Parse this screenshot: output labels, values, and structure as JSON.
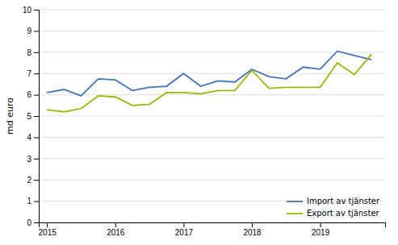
{
  "chart_data": {
    "type": "line",
    "ylabel": "md euro",
    "x": [
      2015.0,
      2015.25,
      2015.5,
      2015.75,
      2016.0,
      2016.25,
      2016.5,
      2016.75,
      2017.0,
      2017.25,
      2017.5,
      2017.75,
      2018.0,
      2018.25,
      2018.5,
      2018.75,
      2019.0,
      2019.25,
      2019.5,
      2019.75
    ],
    "series": [
      {
        "name": "Import av tjänster",
        "color": "#4472C4",
        "values": [
          6.1,
          6.25,
          5.95,
          6.75,
          6.7,
          6.2,
          6.35,
          6.4,
          7.0,
          6.4,
          6.65,
          6.6,
          7.2,
          6.85,
          6.75,
          7.3,
          7.2,
          8.05,
          7.85,
          7.65
        ]
      },
      {
        "name": "Export av tjänster",
        "color": "#9BBB00",
        "values": [
          5.3,
          5.2,
          5.35,
          5.95,
          5.9,
          5.5,
          5.55,
          6.1,
          6.1,
          6.05,
          6.2,
          6.2,
          7.15,
          6.3,
          6.35,
          6.35,
          6.35,
          7.5,
          6.95,
          7.9
        ]
      }
    ],
    "xlim": [
      2014.88,
      2019.95
    ],
    "ylim": [
      0,
      10
    ],
    "xticks": [
      2015,
      2016,
      2017,
      2018,
      2019
    ],
    "yticks": [
      0,
      1,
      2,
      3,
      4,
      5,
      6,
      7,
      8,
      9,
      10
    ],
    "grid": true,
    "legend": "lower right"
  }
}
